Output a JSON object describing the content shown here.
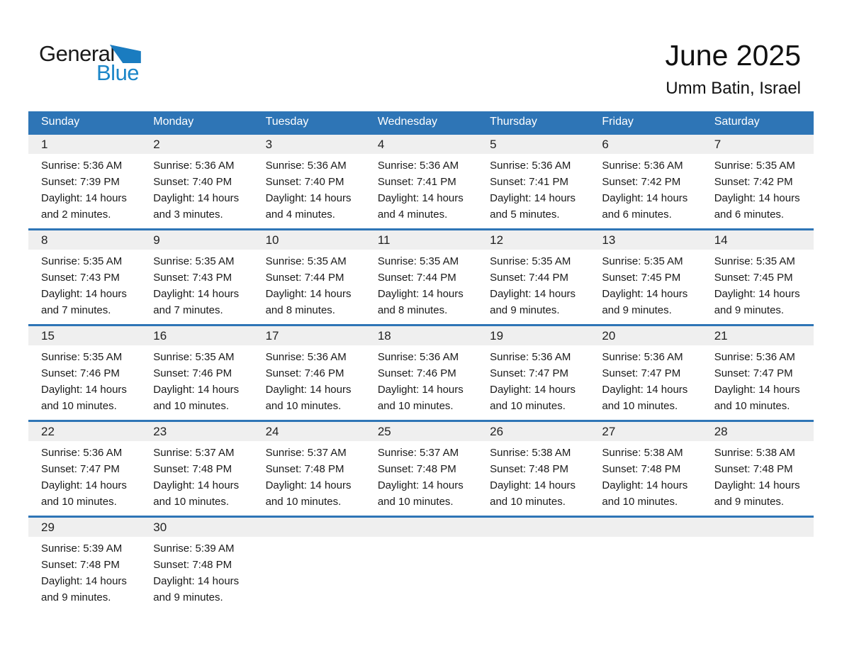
{
  "logo": {
    "part1": "General",
    "part2": "Blue"
  },
  "header": {
    "title": "June 2025",
    "subtitle": "Umm Batin, Israel"
  },
  "colors": {
    "accent_blue": "#2e75b6",
    "band_gray": "#efefef",
    "logo_blue": "#1c86c8",
    "header_text": "#ffffff"
  },
  "labels": {
    "sunrise": "Sunrise:",
    "sunset": "Sunset:",
    "daylight": "Daylight:"
  },
  "calendar": {
    "day_headers": [
      "Sunday",
      "Monday",
      "Tuesday",
      "Wednesday",
      "Thursday",
      "Friday",
      "Saturday"
    ],
    "weeks": [
      [
        {
          "day": "1",
          "sunrise": "5:36 AM",
          "sunset": "7:39 PM",
          "daylight": "14 hours and 2 minutes."
        },
        {
          "day": "2",
          "sunrise": "5:36 AM",
          "sunset": "7:40 PM",
          "daylight": "14 hours and 3 minutes."
        },
        {
          "day": "3",
          "sunrise": "5:36 AM",
          "sunset": "7:40 PM",
          "daylight": "14 hours and 4 minutes."
        },
        {
          "day": "4",
          "sunrise": "5:36 AM",
          "sunset": "7:41 PM",
          "daylight": "14 hours and 4 minutes."
        },
        {
          "day": "5",
          "sunrise": "5:36 AM",
          "sunset": "7:41 PM",
          "daylight": "14 hours and 5 minutes."
        },
        {
          "day": "6",
          "sunrise": "5:36 AM",
          "sunset": "7:42 PM",
          "daylight": "14 hours and 6 minutes."
        },
        {
          "day": "7",
          "sunrise": "5:35 AM",
          "sunset": "7:42 PM",
          "daylight": "14 hours and 6 minutes."
        }
      ],
      [
        {
          "day": "8",
          "sunrise": "5:35 AM",
          "sunset": "7:43 PM",
          "daylight": "14 hours and 7 minutes."
        },
        {
          "day": "9",
          "sunrise": "5:35 AM",
          "sunset": "7:43 PM",
          "daylight": "14 hours and 7 minutes."
        },
        {
          "day": "10",
          "sunrise": "5:35 AM",
          "sunset": "7:44 PM",
          "daylight": "14 hours and 8 minutes."
        },
        {
          "day": "11",
          "sunrise": "5:35 AM",
          "sunset": "7:44 PM",
          "daylight": "14 hours and 8 minutes."
        },
        {
          "day": "12",
          "sunrise": "5:35 AM",
          "sunset": "7:44 PM",
          "daylight": "14 hours and 9 minutes."
        },
        {
          "day": "13",
          "sunrise": "5:35 AM",
          "sunset": "7:45 PM",
          "daylight": "14 hours and 9 minutes."
        },
        {
          "day": "14",
          "sunrise": "5:35 AM",
          "sunset": "7:45 PM",
          "daylight": "14 hours and 9 minutes."
        }
      ],
      [
        {
          "day": "15",
          "sunrise": "5:35 AM",
          "sunset": "7:46 PM",
          "daylight": "14 hours and 10 minutes."
        },
        {
          "day": "16",
          "sunrise": "5:35 AM",
          "sunset": "7:46 PM",
          "daylight": "14 hours and 10 minutes."
        },
        {
          "day": "17",
          "sunrise": "5:36 AM",
          "sunset": "7:46 PM",
          "daylight": "14 hours and 10 minutes."
        },
        {
          "day": "18",
          "sunrise": "5:36 AM",
          "sunset": "7:46 PM",
          "daylight": "14 hours and 10 minutes."
        },
        {
          "day": "19",
          "sunrise": "5:36 AM",
          "sunset": "7:47 PM",
          "daylight": "14 hours and 10 minutes."
        },
        {
          "day": "20",
          "sunrise": "5:36 AM",
          "sunset": "7:47 PM",
          "daylight": "14 hours and 10 minutes."
        },
        {
          "day": "21",
          "sunrise": "5:36 AM",
          "sunset": "7:47 PM",
          "daylight": "14 hours and 10 minutes."
        }
      ],
      [
        {
          "day": "22",
          "sunrise": "5:36 AM",
          "sunset": "7:47 PM",
          "daylight": "14 hours and 10 minutes."
        },
        {
          "day": "23",
          "sunrise": "5:37 AM",
          "sunset": "7:48 PM",
          "daylight": "14 hours and 10 minutes."
        },
        {
          "day": "24",
          "sunrise": "5:37 AM",
          "sunset": "7:48 PM",
          "daylight": "14 hours and 10 minutes."
        },
        {
          "day": "25",
          "sunrise": "5:37 AM",
          "sunset": "7:48 PM",
          "daylight": "14 hours and 10 minutes."
        },
        {
          "day": "26",
          "sunrise": "5:38 AM",
          "sunset": "7:48 PM",
          "daylight": "14 hours and 10 minutes."
        },
        {
          "day": "27",
          "sunrise": "5:38 AM",
          "sunset": "7:48 PM",
          "daylight": "14 hours and 10 minutes."
        },
        {
          "day": "28",
          "sunrise": "5:38 AM",
          "sunset": "7:48 PM",
          "daylight": "14 hours and 9 minutes."
        }
      ],
      [
        {
          "day": "29",
          "sunrise": "5:39 AM",
          "sunset": "7:48 PM",
          "daylight": "14 hours and 9 minutes."
        },
        {
          "day": "30",
          "sunrise": "5:39 AM",
          "sunset": "7:48 PM",
          "daylight": "14 hours and 9 minutes."
        },
        null,
        null,
        null,
        null,
        null
      ]
    ]
  }
}
